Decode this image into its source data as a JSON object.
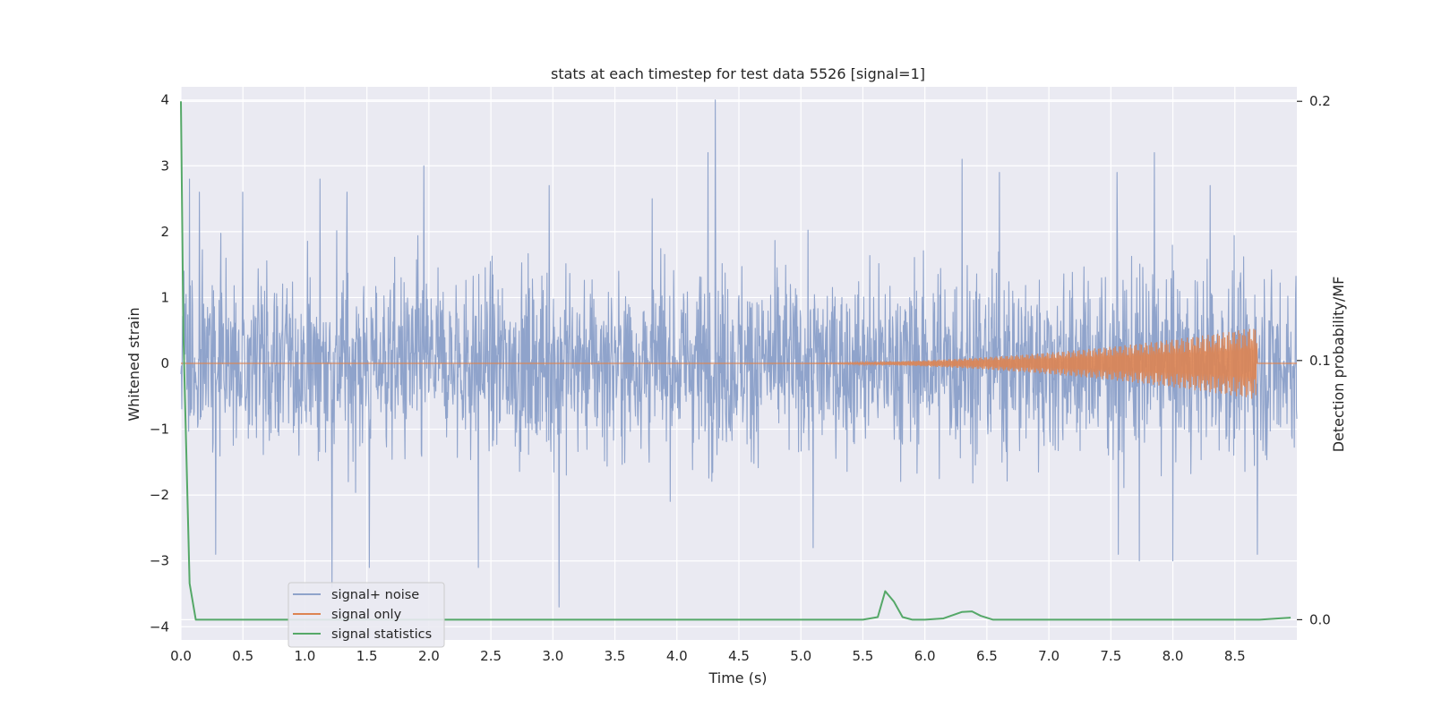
{
  "chart_data": {
    "type": "line",
    "title": "stats at each timestep for test data 5526 [signal=1]",
    "xlabel": "Time (s)",
    "ylabel": "Whitened strain",
    "ylabel_right": "Detection probability/MF",
    "xlim": [
      0.0,
      9.0
    ],
    "ylim": [
      -4.2,
      4.2
    ],
    "ylim_right": [
      -0.0078,
      0.2056
    ],
    "x_ticks": [
      0.0,
      0.5,
      1.0,
      1.5,
      2.0,
      2.5,
      3.0,
      3.5,
      4.0,
      4.5,
      5.0,
      5.5,
      6.0,
      6.5,
      7.0,
      7.5,
      8.0,
      8.5
    ],
    "x_tick_labels": [
      "0.0",
      "0.5",
      "1.0",
      "1.5",
      "2.0",
      "2.5",
      "3.0",
      "3.5",
      "4.0",
      "4.5",
      "5.0",
      "5.5",
      "6.0",
      "6.5",
      "7.0",
      "7.5",
      "8.0",
      "8.5"
    ],
    "y_ticks": [
      4,
      3,
      2,
      1,
      0,
      -1,
      -2,
      -3,
      -4
    ],
    "y_tick_labels": [
      "4",
      "3",
      "2",
      "1",
      "0",
      "−1",
      "−2",
      "−3",
      "−4"
    ],
    "y_ticks_right": [
      0.2,
      0.1,
      0.0
    ],
    "y_tick_labels_right": [
      "0.2",
      "0.1",
      "0.0"
    ],
    "grid": true,
    "legend_position": "lower-left",
    "colors": {
      "plot_bg": "#eaeaf2",
      "grid": "#ffffff",
      "noise": "#8fa3cb",
      "signal": "#dd8452",
      "stats": "#55a868"
    },
    "series": [
      {
        "name": "signal+ noise",
        "axis": "left",
        "description_kind": "noise-trace",
        "x_range": [
          0.0,
          9.0
        ],
        "typical_band": [
          -1.6,
          1.6
        ],
        "peaks": [
          {
            "x": 0.07,
            "y": 2.8
          },
          {
            "x": 0.15,
            "y": 2.6
          },
          {
            "x": 0.5,
            "y": 2.6
          },
          {
            "x": 1.12,
            "y": 2.8
          },
          {
            "x": 1.34,
            "y": 2.6
          },
          {
            "x": 1.96,
            "y": 3.0
          },
          {
            "x": 2.97,
            "y": 2.7
          },
          {
            "x": 3.8,
            "y": 2.5
          },
          {
            "x": 4.31,
            "y": 4.0
          },
          {
            "x": 4.25,
            "y": 3.2
          },
          {
            "x": 6.3,
            "y": 3.1
          },
          {
            "x": 6.6,
            "y": 2.9
          },
          {
            "x": 7.55,
            "y": 2.9
          },
          {
            "x": 7.85,
            "y": 3.2
          },
          {
            "x": 8.3,
            "y": 2.7
          }
        ],
        "troughs": [
          {
            "x": 0.28,
            "y": -2.9
          },
          {
            "x": 1.22,
            "y": -3.4
          },
          {
            "x": 1.52,
            "y": -3.1
          },
          {
            "x": 2.4,
            "y": -3.1
          },
          {
            "x": 3.05,
            "y": -3.7
          },
          {
            "x": 5.1,
            "y": -2.8
          },
          {
            "x": 7.56,
            "y": -2.9
          },
          {
            "x": 7.73,
            "y": -3.0
          },
          {
            "x": 8.0,
            "y": -3.0
          },
          {
            "x": 8.68,
            "y": -2.9
          }
        ]
      },
      {
        "name": "signal only",
        "axis": "left",
        "description_kind": "chirp",
        "start_x": 4.7,
        "peak_x": 8.68,
        "peak_amplitude": 0.55,
        "after_peak": 0.0
      },
      {
        "name": "signal statistics",
        "axis": "right",
        "x": [
          0.0,
          0.02,
          0.07,
          0.12,
          0.2,
          0.5,
          1.0,
          2.0,
          3.0,
          4.0,
          5.0,
          5.5,
          5.62,
          5.68,
          5.75,
          5.82,
          5.9,
          6.0,
          6.15,
          6.3,
          6.38,
          6.45,
          6.55,
          7.0,
          8.0,
          8.7,
          8.85,
          8.95
        ],
        "values": [
          0.2,
          0.11,
          0.014,
          0.0,
          0.0,
          0.0,
          0.0,
          0.0,
          0.0,
          0.0,
          0.0,
          0.0,
          0.001,
          0.011,
          0.007,
          0.001,
          0.0,
          0.0,
          0.0005,
          0.003,
          0.0032,
          0.0015,
          0.0,
          0.0,
          0.0,
          0.0,
          0.0005,
          0.0008
        ]
      }
    ]
  }
}
